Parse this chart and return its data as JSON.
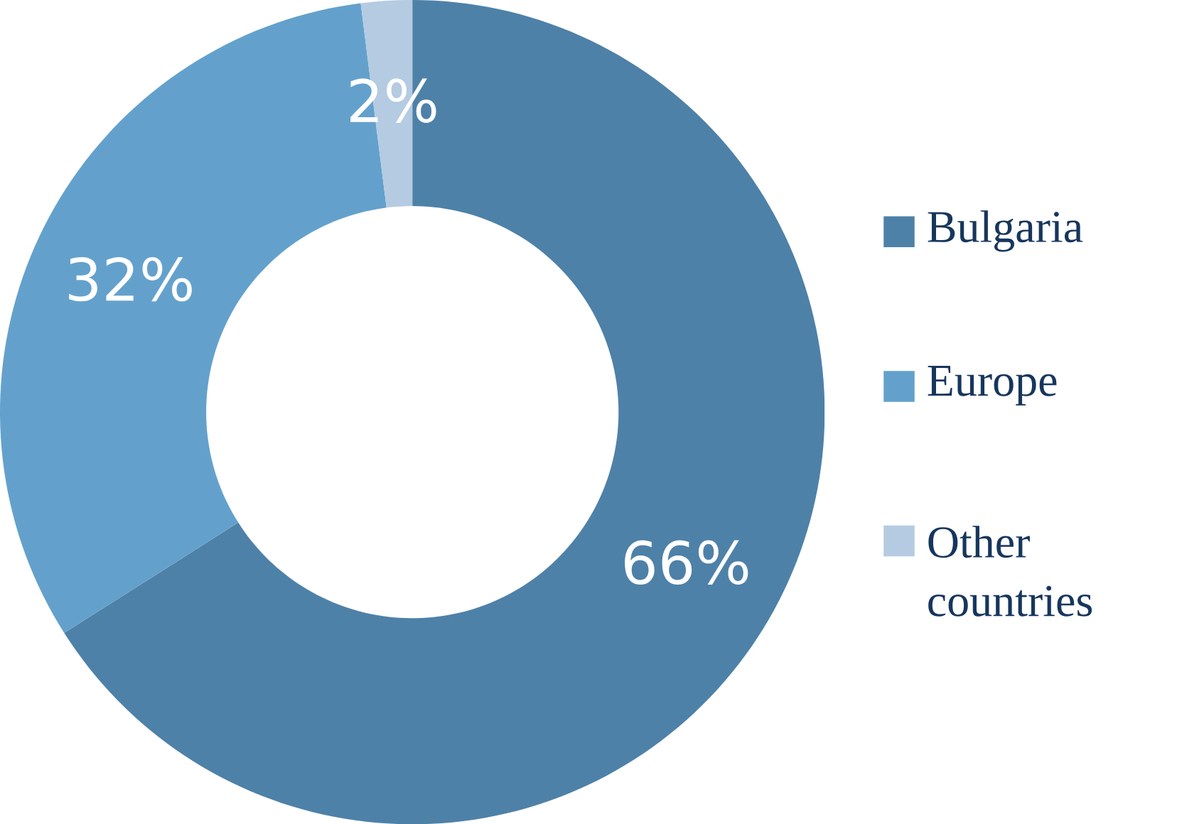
{
  "chart_data": {
    "type": "donut",
    "categories": [
      "Bulgaria",
      "Europe",
      "Other countries"
    ],
    "values": [
      66,
      32,
      2
    ],
    "value_labels": [
      "66%",
      "32%",
      "2%"
    ],
    "colors": [
      "#4e81a8",
      "#63a1cc",
      "#b4cbe2"
    ],
    "legend": "right"
  }
}
